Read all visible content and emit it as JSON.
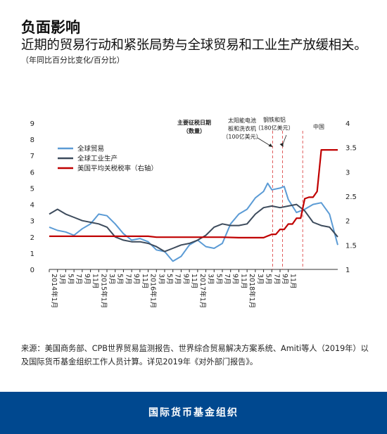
{
  "header": {
    "title": "负面影响",
    "subtitle": "近期的贸易行动和紧张局势与全球贸易和工业生产放缓相关。",
    "unit": "（年同比百分比变化/百分比）"
  },
  "chart_data": {
    "type": "line",
    "x_tick_labels": [
      "2014年1月",
      "3月",
      "5月",
      "7月",
      "9月",
      "11月",
      "2015年1月",
      "3月",
      "5月",
      "7月",
      "9月",
      "11月",
      "2016年1月",
      "3月",
      "5月",
      "7月",
      "9月",
      "11月",
      "2017年1月",
      "3月",
      "5月",
      "7月",
      "9月",
      "11月",
      "2018年1月",
      "3月",
      "5月",
      "7月",
      "9月",
      "11月"
    ],
    "x_range": [
      0,
      70
    ],
    "y_left": {
      "range": [
        0,
        9
      ],
      "ticks": [
        "0",
        "1",
        "2",
        "3",
        "4",
        "5",
        "6",
        "7",
        "8",
        "9"
      ]
    },
    "y_right": {
      "range": [
        1,
        4
      ],
      "ticks": [
        "1",
        "1.5",
        "2",
        "2.5",
        "3",
        "3.5",
        "4"
      ]
    },
    "grid": false,
    "legend_position": "top-left",
    "series": [
      {
        "name": "全球贸易",
        "axis": "left",
        "color": "#5b9bd5",
        "x": [
          0,
          2,
          4,
          6,
          8,
          10,
          12,
          14,
          16,
          18,
          20,
          22,
          24,
          26,
          28,
          30,
          32,
          34,
          36,
          38,
          40,
          42,
          44,
          46,
          48,
          50,
          52,
          53,
          54,
          56,
          57,
          58,
          60,
          62,
          64,
          66,
          68,
          70
        ],
        "y": [
          2.6,
          2.4,
          2.3,
          2.1,
          2.5,
          2.8,
          3.4,
          3.3,
          2.8,
          2.2,
          1.8,
          1.9,
          1.7,
          1.2,
          1.1,
          0.5,
          0.8,
          1.5,
          1.8,
          1.4,
          1.3,
          1.6,
          2.8,
          3.4,
          3.7,
          4.4,
          4.8,
          5.3,
          4.9,
          5.0,
          5.1,
          4.3,
          3.5,
          3.7,
          4.0,
          4.1,
          3.4,
          1.5
        ]
      },
      {
        "name": "全球工业生产",
        "axis": "left",
        "color": "#3d4b5c",
        "x": [
          0,
          2,
          4,
          6,
          8,
          10,
          12,
          14,
          16,
          18,
          20,
          22,
          24,
          26,
          28,
          30,
          32,
          34,
          36,
          38,
          40,
          42,
          44,
          46,
          48,
          50,
          52,
          54,
          56,
          58,
          60,
          62,
          64,
          66,
          68,
          70
        ],
        "y": [
          3.4,
          3.7,
          3.4,
          3.2,
          3.0,
          2.9,
          2.8,
          2.6,
          2.0,
          1.8,
          1.7,
          1.7,
          1.6,
          1.4,
          1.1,
          1.3,
          1.5,
          1.6,
          1.8,
          2.1,
          2.6,
          2.8,
          2.7,
          2.7,
          2.8,
          3.4,
          3.8,
          3.9,
          3.8,
          3.9,
          4.0,
          3.6,
          2.9,
          2.7,
          2.6,
          2.0
        ]
      },
      {
        "name": "美国平均关税税率（右轴）",
        "axis": "right",
        "color": "#c00000",
        "x": [
          0,
          24,
          26,
          36,
          42,
          46,
          48,
          50,
          52,
          54,
          55,
          56,
          57,
          58,
          59,
          60,
          61,
          62,
          63,
          64,
          65,
          66,
          67,
          68,
          70
        ],
        "y": [
          1.68,
          1.68,
          1.66,
          1.66,
          1.66,
          1.65,
          1.65,
          1.65,
          1.65,
          1.72,
          1.72,
          1.82,
          1.82,
          1.93,
          1.93,
          2.05,
          2.05,
          2.45,
          2.48,
          2.48,
          2.6,
          3.45,
          3.45,
          3.45,
          3.45
        ]
      }
    ],
    "annotations": {
      "header": "主要征税日期（数量）",
      "events": [
        {
          "x": 54.2,
          "label": "太阳能电池板和洗衣机（100亿美元）"
        },
        {
          "x": 56.6,
          "label": "钢铁和铝（180亿美元）"
        },
        {
          "x": 61.5,
          "label": "中国"
        }
      ]
    }
  },
  "source": "来源：美国商务部、CPB世界贸易监测报告、世界综合贸易解决方案系统、Amiti等人（2019年）以及国际货币基金组织工作人员计算。详见2019年《对外部门报告》。",
  "footer": {
    "org": "国际货币基金组织"
  }
}
